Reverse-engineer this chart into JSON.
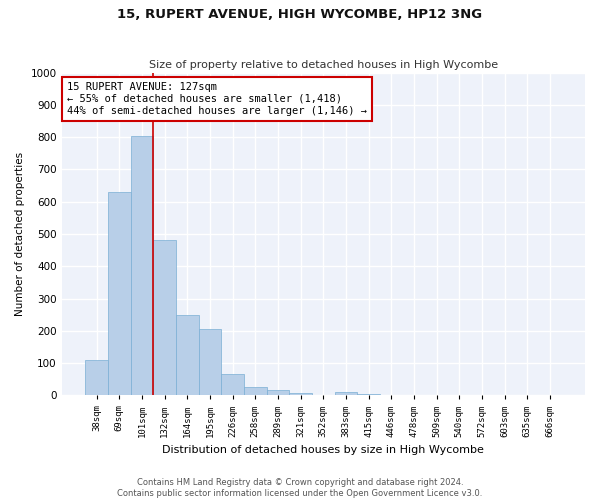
{
  "title": "15, RUPERT AVENUE, HIGH WYCOMBE, HP12 3NG",
  "subtitle": "Size of property relative to detached houses in High Wycombe",
  "xlabel": "Distribution of detached houses by size in High Wycombe",
  "ylabel": "Number of detached properties",
  "categories": [
    "38sqm",
    "69sqm",
    "101sqm",
    "132sqm",
    "164sqm",
    "195sqm",
    "226sqm",
    "258sqm",
    "289sqm",
    "321sqm",
    "352sqm",
    "383sqm",
    "415sqm",
    "446sqm",
    "478sqm",
    "509sqm",
    "540sqm",
    "572sqm",
    "603sqm",
    "635sqm",
    "666sqm"
  ],
  "values": [
    110,
    630,
    805,
    480,
    250,
    205,
    65,
    25,
    18,
    8,
    0,
    10,
    5,
    0,
    0,
    0,
    0,
    0,
    0,
    0,
    0
  ],
  "bar_color": "#b8cfe8",
  "bar_edge_color": "#7aaed4",
  "vline_x": 3,
  "vline_color": "#cc0000",
  "annotation_text": "15 RUPERT AVENUE: 127sqm\n← 55% of detached houses are smaller (1,418)\n44% of semi-detached houses are larger (1,146) →",
  "annotation_box_color": "#ffffff",
  "annotation_box_edge_color": "#cc0000",
  "ylim": [
    0,
    1000
  ],
  "yticks": [
    0,
    100,
    200,
    300,
    400,
    500,
    600,
    700,
    800,
    900,
    1000
  ],
  "background_color": "#eef2fa",
  "grid_color": "#ffffff",
  "footer_line1": "Contains HM Land Registry data © Crown copyright and database right 2024.",
  "footer_line2": "Contains public sector information licensed under the Open Government Licence v3.0."
}
